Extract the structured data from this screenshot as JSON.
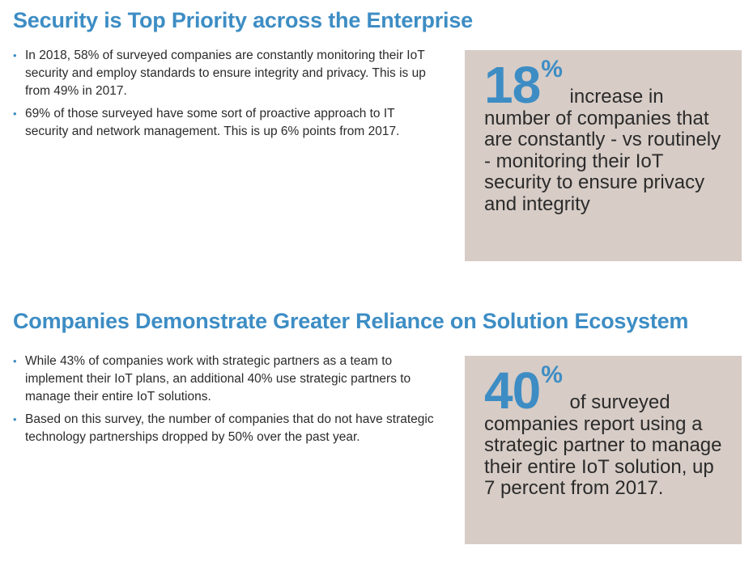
{
  "sections": [
    {
      "heading": "Security is Top Priority across the Enterprise",
      "bullets": [
        "In 2018, 58% of surveyed companies are constantly monitoring their IoT security and employ standards to ensure integrity and privacy. This is up from 49% in 2017.",
        "69% of those surveyed have some sort of proactive approach to IT security and network management. This is up 6% points from 2017."
      ],
      "stat": {
        "number": "18",
        "unit": "%",
        "description": "increase in number of companies that are constantly - vs routinely - monitoring their IoT security to ensure privacy and integrity"
      }
    },
    {
      "heading": "Companies Demonstrate Greater Reliance on Solution Ecosystem",
      "bullets": [
        "While 43% of companies work with strategic partners as a team to implement their IoT plans, an additional 40% use strategic partners to manage their entire IoT solutions.",
        "Based on this survey, the number of companies that do not have strategic technology partnerships dropped by 50% over the past year."
      ],
      "stat": {
        "number": "40",
        "unit": "%",
        "description": "of surveyed companies report using a strategic partner to manage their entire IoT solution, up 7 percent from 2017."
      }
    }
  ],
  "colors": {
    "accent": "#3d8dc4",
    "stat_box_background": "#d7ccc6",
    "body_text": "#2b2b2b"
  },
  "icons": {
    "bullet": "bullet-dot-icon"
  }
}
